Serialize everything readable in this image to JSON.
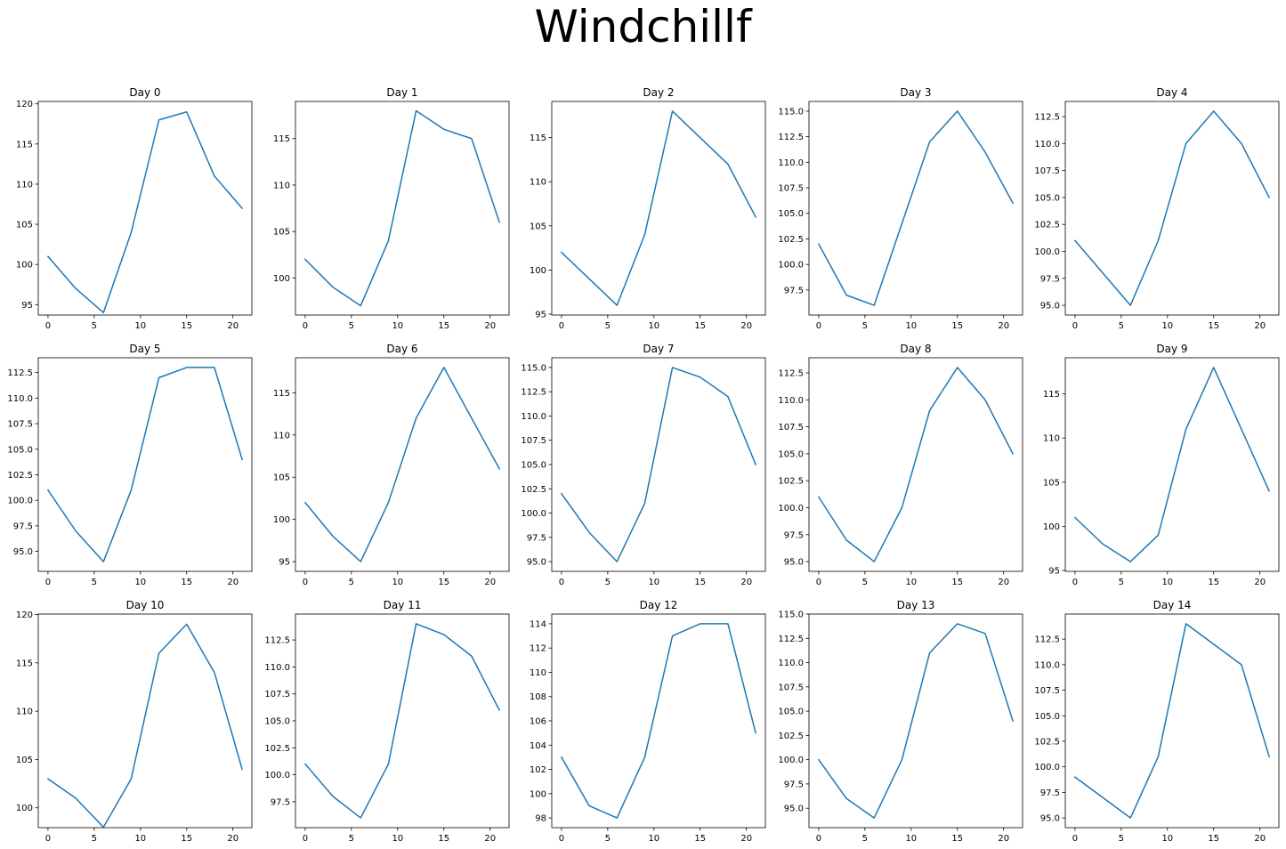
{
  "figure": {
    "suptitle": "Windchillf"
  },
  "chart_data": [
    {
      "type": "line",
      "title": "Day 0",
      "x": [
        0,
        3,
        6,
        9,
        12,
        15,
        18,
        21
      ],
      "values": [
        101,
        97,
        94,
        104,
        118,
        119,
        111,
        107
      ],
      "ylim": [
        93.7,
        120.3
      ],
      "yticks": [
        95,
        100,
        105,
        110,
        115,
        120
      ],
      "ytick_labels": [
        "95",
        "100",
        "105",
        "110",
        "115",
        "120"
      ],
      "xticks": [
        0,
        5,
        10,
        15,
        20
      ],
      "xtick_labels": [
        "0",
        "5",
        "10",
        "15",
        "20"
      ],
      "color": "#1f77b4"
    },
    {
      "type": "line",
      "title": "Day 1",
      "x": [
        0,
        3,
        6,
        9,
        12,
        15,
        18,
        21
      ],
      "values": [
        102,
        99,
        97,
        104,
        118,
        116,
        115,
        106
      ],
      "ylim": [
        96.0,
        119.0
      ],
      "yticks": [
        100,
        105,
        110,
        115
      ],
      "ytick_labels": [
        "100",
        "105",
        "110",
        "115"
      ],
      "xticks": [
        0,
        5,
        10,
        15,
        20
      ],
      "xtick_labels": [
        "0",
        "5",
        "10",
        "15",
        "20"
      ],
      "color": "#1f77b4"
    },
    {
      "type": "line",
      "title": "Day 2",
      "x": [
        0,
        3,
        6,
        9,
        12,
        15,
        18,
        21
      ],
      "values": [
        102,
        99,
        96,
        104,
        118,
        115,
        112,
        106
      ],
      "ylim": [
        94.9,
        119.1
      ],
      "yticks": [
        95,
        100,
        105,
        110,
        115
      ],
      "ytick_labels": [
        "95",
        "100",
        "105",
        "110",
        "115"
      ],
      "xticks": [
        0,
        5,
        10,
        15,
        20
      ],
      "xtick_labels": [
        "0",
        "5",
        "10",
        "15",
        "20"
      ],
      "color": "#1f77b4"
    },
    {
      "type": "line",
      "title": "Day 3",
      "x": [
        0,
        3,
        6,
        9,
        12,
        15,
        18,
        21
      ],
      "values": [
        102,
        97,
        96,
        104,
        112,
        115,
        111,
        106
      ],
      "ylim": [
        95.05,
        115.95
      ],
      "yticks": [
        97.5,
        100,
        102.5,
        105,
        107.5,
        110,
        112.5,
        115
      ],
      "ytick_labels": [
        "97.5",
        "100.0",
        "102.5",
        "105.0",
        "107.5",
        "110.0",
        "112.5",
        "115.0"
      ],
      "xticks": [
        0,
        5,
        10,
        15,
        20
      ],
      "xtick_labels": [
        "0",
        "5",
        "10",
        "15",
        "20"
      ],
      "color": "#1f77b4"
    },
    {
      "type": "line",
      "title": "Day 4",
      "x": [
        0,
        3,
        6,
        9,
        12,
        15,
        18,
        21
      ],
      "values": [
        101,
        98,
        95,
        101,
        110,
        113,
        110,
        105
      ],
      "ylim": [
        94.1,
        113.9
      ],
      "yticks": [
        95,
        97.5,
        100,
        102.5,
        105,
        107.5,
        110,
        112.5
      ],
      "ytick_labels": [
        "95.0",
        "97.5",
        "100.0",
        "102.5",
        "105.0",
        "107.5",
        "110.0",
        "112.5"
      ],
      "xticks": [
        0,
        5,
        10,
        15,
        20
      ],
      "xtick_labels": [
        "0",
        "5",
        "10",
        "15",
        "20"
      ],
      "color": "#1f77b4"
    },
    {
      "type": "line",
      "title": "Day 5",
      "x": [
        0,
        3,
        6,
        9,
        12,
        15,
        18,
        21
      ],
      "values": [
        101,
        97,
        94,
        101,
        112,
        113,
        113,
        104
      ],
      "ylim": [
        93.05,
        113.95
      ],
      "yticks": [
        95,
        97.5,
        100,
        102.5,
        105,
        107.5,
        110,
        112.5
      ],
      "ytick_labels": [
        "95.0",
        "97.5",
        "100.0",
        "102.5",
        "105.0",
        "107.5",
        "110.0",
        "112.5"
      ],
      "xticks": [
        0,
        5,
        10,
        15,
        20
      ],
      "xtick_labels": [
        "0",
        "5",
        "10",
        "15",
        "20"
      ],
      "color": "#1f77b4"
    },
    {
      "type": "line",
      "title": "Day 6",
      "x": [
        0,
        3,
        6,
        9,
        12,
        15,
        18,
        21
      ],
      "values": [
        102,
        98,
        95,
        102,
        112,
        118,
        112,
        106
      ],
      "ylim": [
        93.85,
        119.15
      ],
      "yticks": [
        95,
        100,
        105,
        110,
        115
      ],
      "ytick_labels": [
        "95",
        "100",
        "105",
        "110",
        "115"
      ],
      "xticks": [
        0,
        5,
        10,
        15,
        20
      ],
      "xtick_labels": [
        "0",
        "5",
        "10",
        "15",
        "20"
      ],
      "color": "#1f77b4"
    },
    {
      "type": "line",
      "title": "Day 7",
      "x": [
        0,
        3,
        6,
        9,
        12,
        15,
        18,
        21
      ],
      "values": [
        102,
        98,
        95,
        101,
        115,
        114,
        112,
        105
      ],
      "ylim": [
        94.0,
        116.0
      ],
      "yticks": [
        95,
        97.5,
        100,
        102.5,
        105,
        107.5,
        110,
        112.5,
        115
      ],
      "ytick_labels": [
        "95.0",
        "97.5",
        "100.0",
        "102.5",
        "105.0",
        "107.5",
        "110.0",
        "112.5",
        "115.0"
      ],
      "xticks": [
        0,
        5,
        10,
        15,
        20
      ],
      "xtick_labels": [
        "0",
        "5",
        "10",
        "15",
        "20"
      ],
      "color": "#1f77b4"
    },
    {
      "type": "line",
      "title": "Day 8",
      "x": [
        0,
        3,
        6,
        9,
        12,
        15,
        18,
        21
      ],
      "values": [
        101,
        97,
        95,
        100,
        109,
        113,
        110,
        105
      ],
      "ylim": [
        94.1,
        113.9
      ],
      "yticks": [
        95,
        97.5,
        100,
        102.5,
        105,
        107.5,
        110,
        112.5
      ],
      "ytick_labels": [
        "95.0",
        "97.5",
        "100.0",
        "102.5",
        "105.0",
        "107.5",
        "110.0",
        "112.5"
      ],
      "xticks": [
        0,
        5,
        10,
        15,
        20
      ],
      "xtick_labels": [
        "0",
        "5",
        "10",
        "15",
        "20"
      ],
      "color": "#1f77b4"
    },
    {
      "type": "line",
      "title": "Day 9",
      "x": [
        0,
        3,
        6,
        9,
        12,
        15,
        18,
        21
      ],
      "values": [
        101,
        98,
        96,
        99,
        111,
        118,
        111,
        104
      ],
      "ylim": [
        94.9,
        119.1
      ],
      "yticks": [
        95,
        100,
        105,
        110,
        115
      ],
      "ytick_labels": [
        "95",
        "100",
        "105",
        "110",
        "115"
      ],
      "xticks": [
        0,
        5,
        10,
        15,
        20
      ],
      "xtick_labels": [
        "0",
        "5",
        "10",
        "15",
        "20"
      ],
      "color": "#1f77b4"
    },
    {
      "type": "line",
      "title": "Day 10",
      "x": [
        0,
        3,
        6,
        9,
        12,
        15,
        18,
        21
      ],
      "values": [
        103,
        101,
        98,
        103,
        116,
        119,
        114,
        104
      ],
      "ylim": [
        97.95,
        120.05
      ],
      "yticks": [
        100,
        105,
        110,
        115,
        120
      ],
      "ytick_labels": [
        "100",
        "105",
        "110",
        "115",
        "120"
      ],
      "xticks": [
        0,
        5,
        10,
        15,
        20
      ],
      "xtick_labels": [
        "0",
        "5",
        "10",
        "15",
        "20"
      ],
      "color": "#1f77b4"
    },
    {
      "type": "line",
      "title": "Day 11",
      "x": [
        0,
        3,
        6,
        9,
        12,
        15,
        18,
        21
      ],
      "values": [
        101,
        98,
        96,
        101,
        114,
        113,
        111,
        106
      ],
      "ylim": [
        95.1,
        114.9
      ],
      "yticks": [
        97.5,
        100,
        102.5,
        105,
        107.5,
        110,
        112.5
      ],
      "ytick_labels": [
        "97.5",
        "100.0",
        "102.5",
        "105.0",
        "107.5",
        "110.0",
        "112.5"
      ],
      "xticks": [
        0,
        5,
        10,
        15,
        20
      ],
      "xtick_labels": [
        "0",
        "5",
        "10",
        "15",
        "20"
      ],
      "color": "#1f77b4"
    },
    {
      "type": "line",
      "title": "Day 12",
      "x": [
        0,
        3,
        6,
        9,
        12,
        15,
        18,
        21
      ],
      "values": [
        103,
        99,
        98,
        103,
        113,
        114,
        114,
        105
      ],
      "ylim": [
        97.2,
        114.8
      ],
      "yticks": [
        98,
        100,
        102,
        104,
        106,
        108,
        110,
        112,
        114
      ],
      "ytick_labels": [
        "98",
        "100",
        "102",
        "104",
        "106",
        "108",
        "110",
        "112",
        "114"
      ],
      "xticks": [
        0,
        5,
        10,
        15,
        20
      ],
      "xtick_labels": [
        "0",
        "5",
        "10",
        "15",
        "20"
      ],
      "color": "#1f77b4"
    },
    {
      "type": "line",
      "title": "Day 13",
      "x": [
        0,
        3,
        6,
        9,
        12,
        15,
        18,
        21
      ],
      "values": [
        100,
        96,
        94,
        100,
        111,
        114,
        113,
        104
      ],
      "ylim": [
        93.0,
        115.0
      ],
      "yticks": [
        95,
        97.5,
        100,
        102.5,
        105,
        107.5,
        110,
        112.5,
        115
      ],
      "ytick_labels": [
        "95.0",
        "97.5",
        "100.0",
        "102.5",
        "105.0",
        "107.5",
        "110.0",
        "112.5",
        "115.0"
      ],
      "xticks": [
        0,
        5,
        10,
        15,
        20
      ],
      "xtick_labels": [
        "0",
        "5",
        "10",
        "15",
        "20"
      ],
      "color": "#1f77b4"
    },
    {
      "type": "line",
      "title": "Day 14",
      "x": [
        0,
        3,
        6,
        9,
        12,
        15,
        18,
        21
      ],
      "values": [
        99,
        97,
        95,
        101,
        114,
        112,
        110,
        101
      ],
      "ylim": [
        94.05,
        114.95
      ],
      "yticks": [
        95,
        97.5,
        100,
        102.5,
        105,
        107.5,
        110,
        112.5
      ],
      "ytick_labels": [
        "95.0",
        "97.5",
        "100.0",
        "102.5",
        "105.0",
        "107.5",
        "110.0",
        "112.5"
      ],
      "xticks": [
        0,
        5,
        10,
        15,
        20
      ],
      "xtick_labels": [
        "0",
        "5",
        "10",
        "15",
        "20"
      ],
      "color": "#1f77b4"
    }
  ]
}
